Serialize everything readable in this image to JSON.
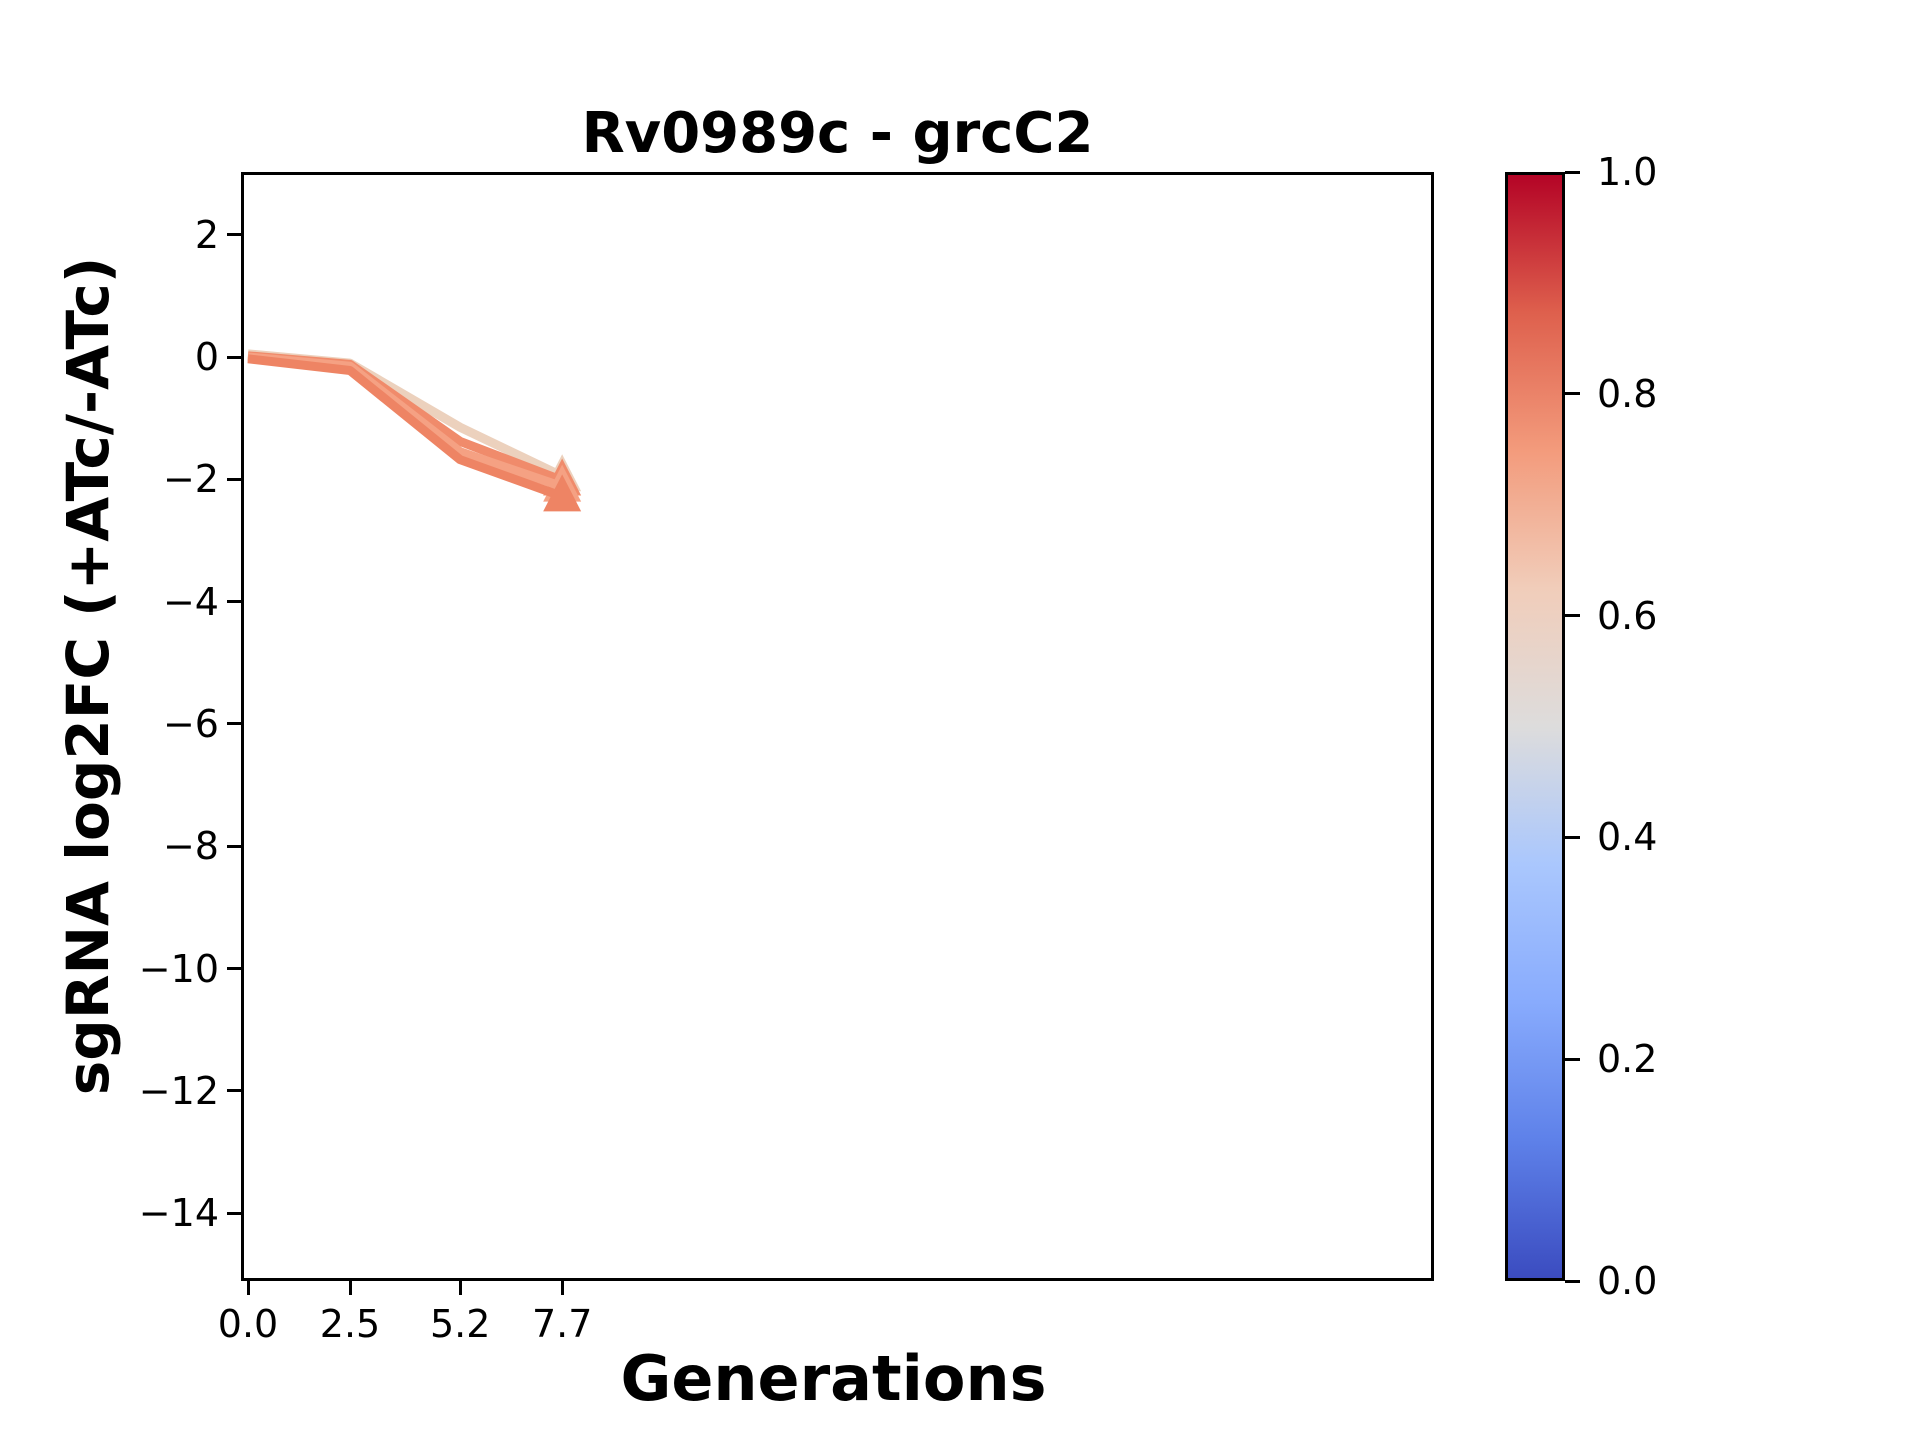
{
  "chart_data": {
    "type": "line",
    "title": "Rv0989c - grcC2",
    "xlabel": "Generations",
    "ylabel": "sgRNA log2FC (+ATc/-ATc)",
    "x": [
      0.0,
      2.5,
      5.2,
      7.7
    ],
    "xlim": [
      -0.2,
      29.2
    ],
    "ylim": [
      -15.1,
      3.0
    ],
    "grid": false,
    "legend": "none",
    "xticks": {
      "values": [
        0.0,
        2.5,
        5.2,
        7.7
      ],
      "labels": [
        "0.0",
        "2.5",
        "5.2",
        "7.7"
      ]
    },
    "yticks": {
      "values": [
        2,
        0,
        -2,
        -4,
        -6,
        -8,
        -10,
        -12,
        -14
      ],
      "labels": [
        "2",
        "0",
        "−2",
        "−4",
        "−6",
        "−8",
        "−10",
        "−12",
        "−14"
      ]
    },
    "series": [
      {
        "colormap_value": 0.58,
        "color": "#ecd1bd",
        "values": [
          0.05,
          -0.1,
          -1.15,
          -1.95
        ],
        "end_marker": "triangle-up"
      },
      {
        "colormap_value": 0.76,
        "color": "#f08b6b",
        "values": [
          0.02,
          -0.12,
          -1.38,
          -2.02
        ],
        "end_marker": "triangle-up"
      },
      {
        "colormap_value": 0.7,
        "color": "#f5a183",
        "values": [
          0.0,
          -0.15,
          -1.55,
          -2.12
        ],
        "end_marker": "triangle-up"
      },
      {
        "colormap_value": 0.78,
        "color": "#ee8464",
        "values": [
          -0.03,
          -0.22,
          -1.68,
          -2.28
        ],
        "end_marker": "triangle-up"
      }
    ],
    "colorbar": {
      "colormap": "coolwarm",
      "range": [
        0.0,
        1.0
      ],
      "ticks": {
        "values": [
          0.0,
          0.2,
          0.4,
          0.6,
          0.8,
          1.0
        ],
        "labels": [
          "0.0",
          "0.2",
          "0.4",
          "0.6",
          "0.8",
          "1.0"
        ]
      },
      "stops": [
        {
          "t": 0.0,
          "color": "#3b4cc0"
        },
        {
          "t": 0.125,
          "color": "#5e81e9"
        },
        {
          "t": 0.25,
          "color": "#88abfd"
        },
        {
          "t": 0.375,
          "color": "#aac7fd"
        },
        {
          "t": 0.5,
          "color": "#dddcdc"
        },
        {
          "t": 0.625,
          "color": "#f1cdba"
        },
        {
          "t": 0.75,
          "color": "#f39b7c"
        },
        {
          "t": 0.875,
          "color": "#de604d"
        },
        {
          "t": 1.0,
          "color": "#b40426"
        }
      ]
    }
  }
}
